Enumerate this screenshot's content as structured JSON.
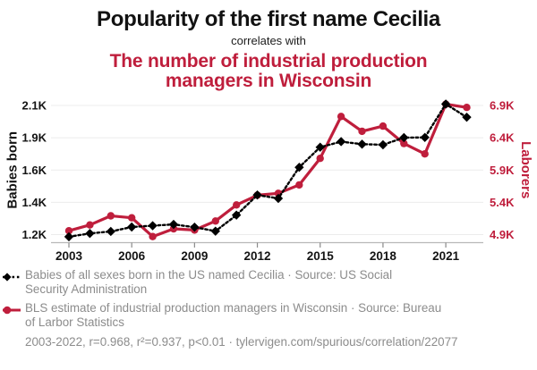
{
  "header": {
    "title": "Popularity of the first name Cecilia",
    "subtitle": "correlates with",
    "secondary_title_lines": [
      "The number of industrial production",
      "managers in Wisconsin"
    ]
  },
  "colors": {
    "accent_red": "#bf1e3c",
    "series_black": "#000000",
    "muted_text": "#8c8c8c",
    "gridline": "#ececec",
    "axis_line": "#b8b8b8"
  },
  "chart_data": {
    "type": "line",
    "x": [
      2003,
      2004,
      2005,
      2006,
      2007,
      2008,
      2009,
      2010,
      2011,
      2012,
      2013,
      2014,
      2015,
      2016,
      2017,
      2018,
      2019,
      2020,
      2021,
      2022
    ],
    "x_ticks": [
      2003,
      2006,
      2009,
      2012,
      2015,
      2018,
      2021
    ],
    "series": [
      {
        "id": "cecilia",
        "name": "Babies of all sexes born in the US named Cecilia",
        "axis": "left",
        "color": "#000000",
        "marker": "diamond",
        "line_style": "dashed",
        "values": [
          1185,
          1208,
          1222,
          1253,
          1262,
          1271,
          1252,
          1224,
          1336,
          1476,
          1452,
          1669,
          1809,
          1848,
          1830,
          1826,
          1876,
          1877,
          2110,
          2018
        ]
      },
      {
        "id": "managers",
        "name": "BLS estimate of industrial production managers in Wisconsin",
        "axis": "right",
        "color": "#bf1e3c",
        "marker": "circle",
        "line_style": "solid",
        "values": [
          4960,
          5050,
          5190,
          5160,
          4870,
          4990,
          4970,
          5110,
          5360,
          5510,
          5540,
          5670,
          6080,
          6730,
          6500,
          6580,
          6310,
          6150,
          6920,
          6870
        ]
      }
    ],
    "left_axis": {
      "label": "Babies born",
      "tick_labels": [
        "1.2K",
        "1.4K",
        "1.6K",
        "1.9K",
        "2.1K"
      ],
      "tick_values": [
        1200,
        1425,
        1650,
        1875,
        2100
      ],
      "range": [
        1200,
        2100
      ]
    },
    "right_axis": {
      "label": "Laborers",
      "tick_labels": [
        "4.9K",
        "5.4K",
        "5.9K",
        "6.4K",
        "6.9K"
      ],
      "tick_values": [
        4900,
        5400,
        5900,
        6400,
        6900
      ],
      "range": [
        4900,
        6900
      ]
    },
    "grid": "horizontal-only",
    "legend_position": "below"
  },
  "legend": [
    {
      "series": "cecilia",
      "lines": [
        "Babies of all sexes born in the US named Cecilia · Source: US Social",
        "Security Administration"
      ]
    },
    {
      "series": "managers",
      "lines": [
        "BLS estimate of industrial production managers in Wisconsin · Source: Bureau",
        "of Larbor Statistics"
      ]
    }
  ],
  "footer": {
    "text": "2003-2022, r=0.968, r²=0.937, p<0.01 · tylervigen.com/spurious/correlation/22077"
  }
}
